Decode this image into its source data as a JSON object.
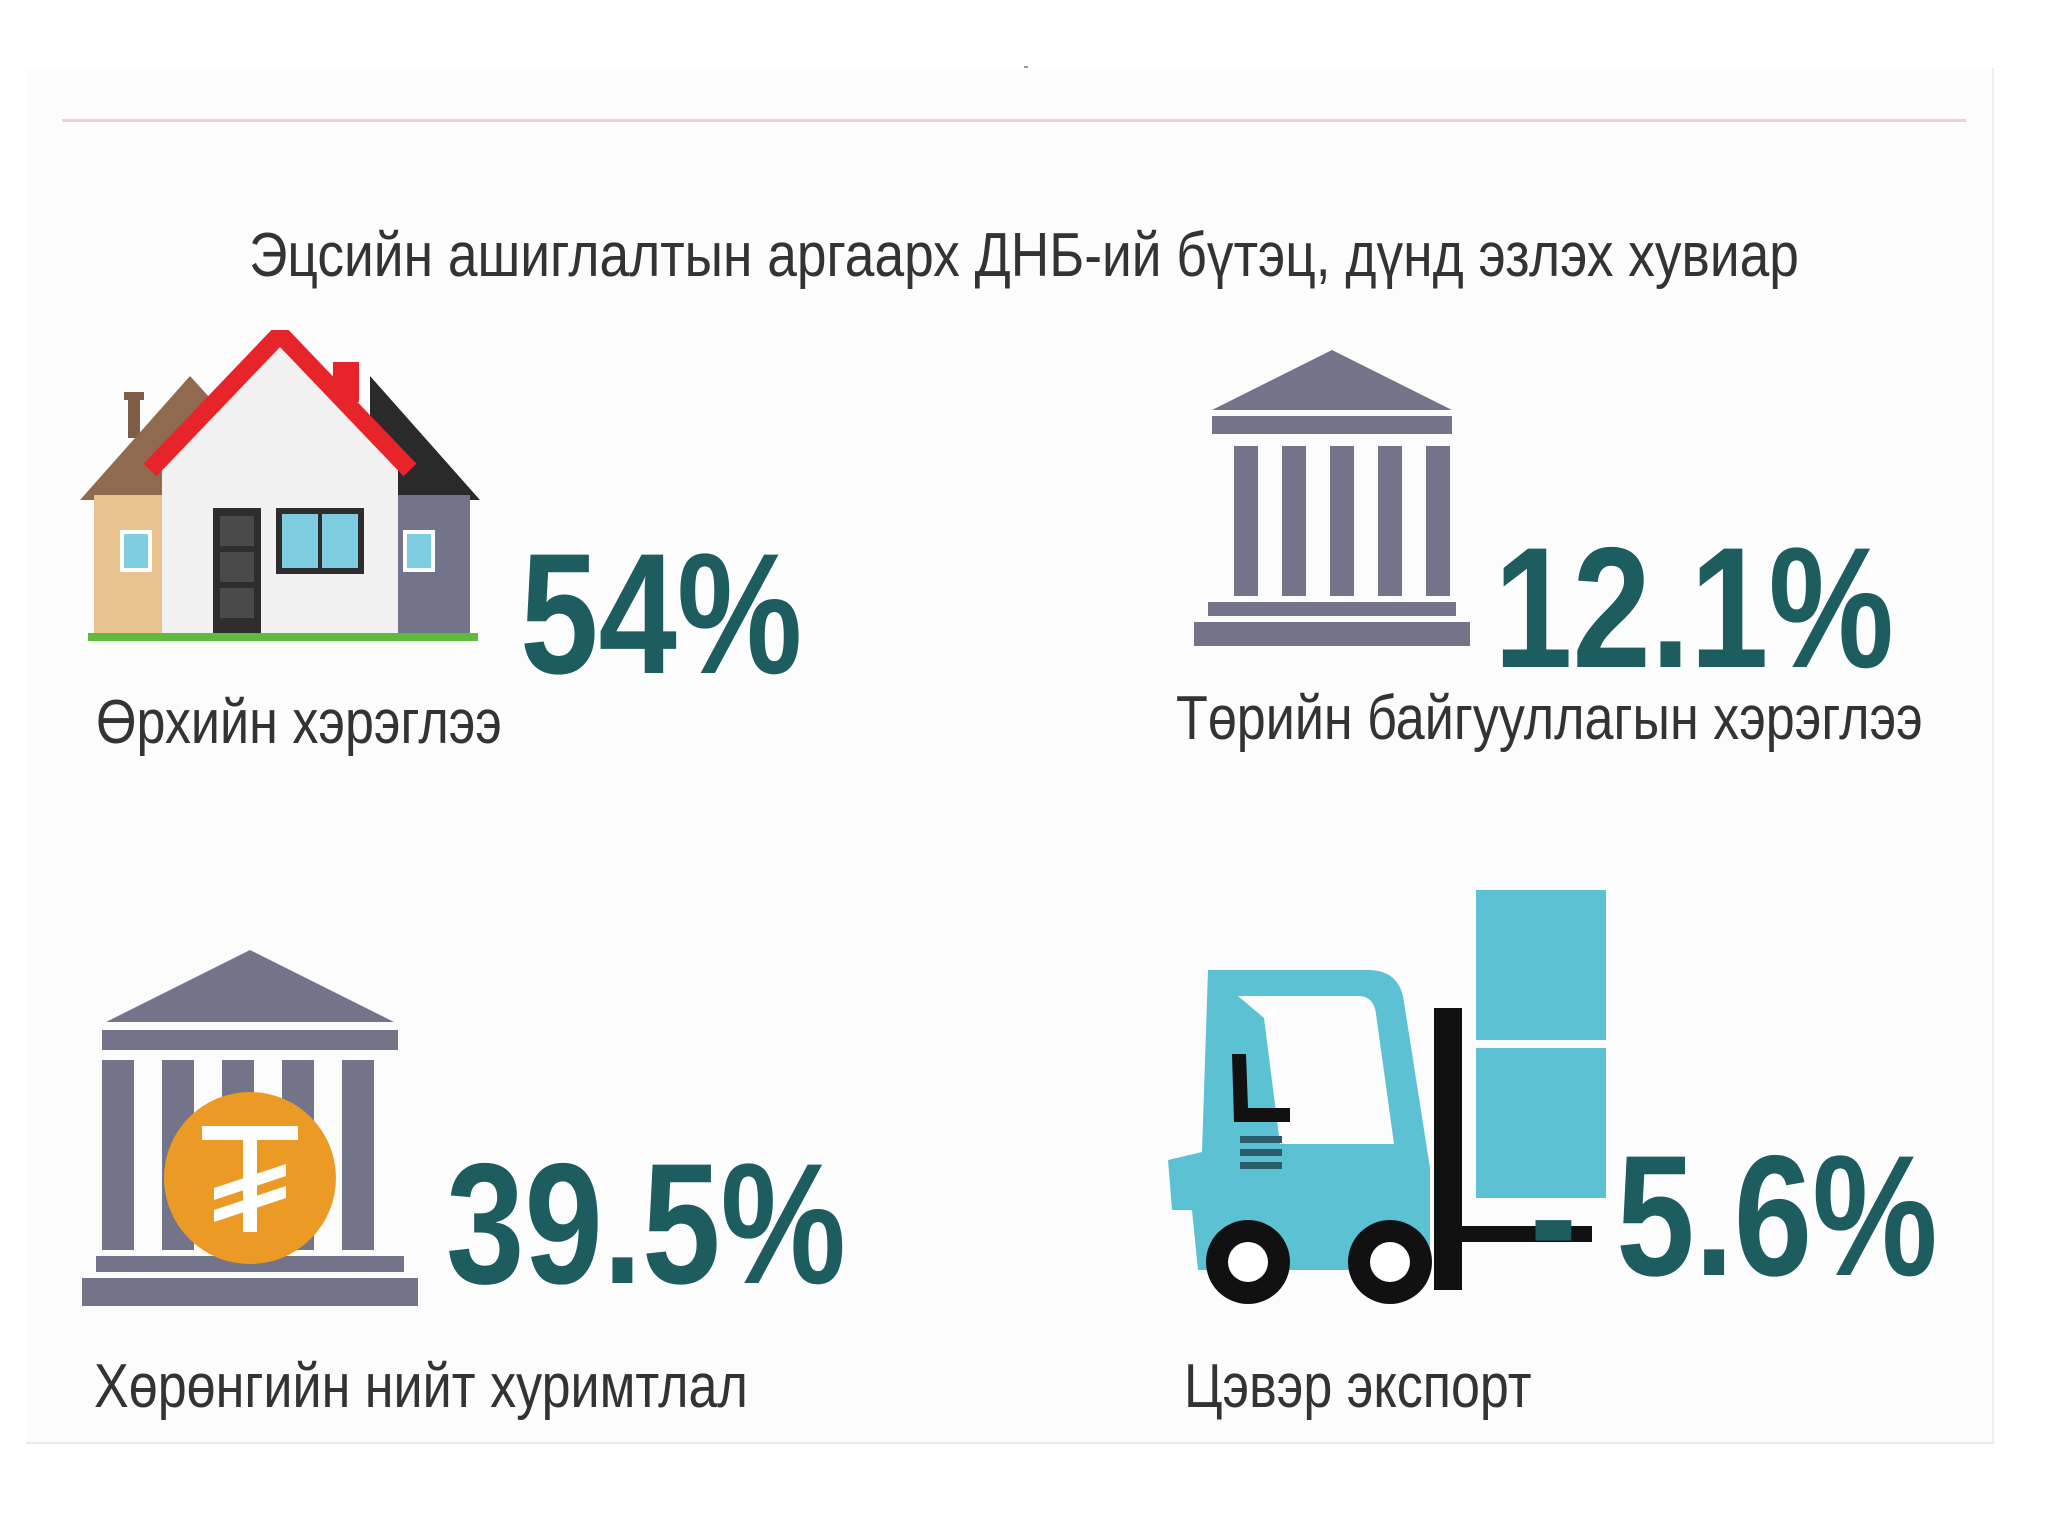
{
  "title": "Эцсийн ашиглалтын аргаарх ДНБ-ий бүтэц, дүнд эзлэх хувиар",
  "items": [
    {
      "icon": "house-icon",
      "value": "54%",
      "label": "Өрхийн хэрэглээ"
    },
    {
      "icon": "government-building-icon",
      "value": "12.1%",
      "label": "Төрийн байгууллагын хэрэглээ"
    },
    {
      "icon": "bank-tugrik-icon",
      "value": "39.5%",
      "label": "Хөрөнгийн нийт хуримтлал"
    },
    {
      "icon": "forklift-icon",
      "value": "- 5.6%",
      "label": "Цэвэр экспорт"
    }
  ],
  "colors": {
    "value": "#1d5c5f",
    "label": "#333333",
    "building": "#737389",
    "forklift": "#5bc1d3",
    "coin": "#eb9a25",
    "roof_red": "#e8242b"
  }
}
